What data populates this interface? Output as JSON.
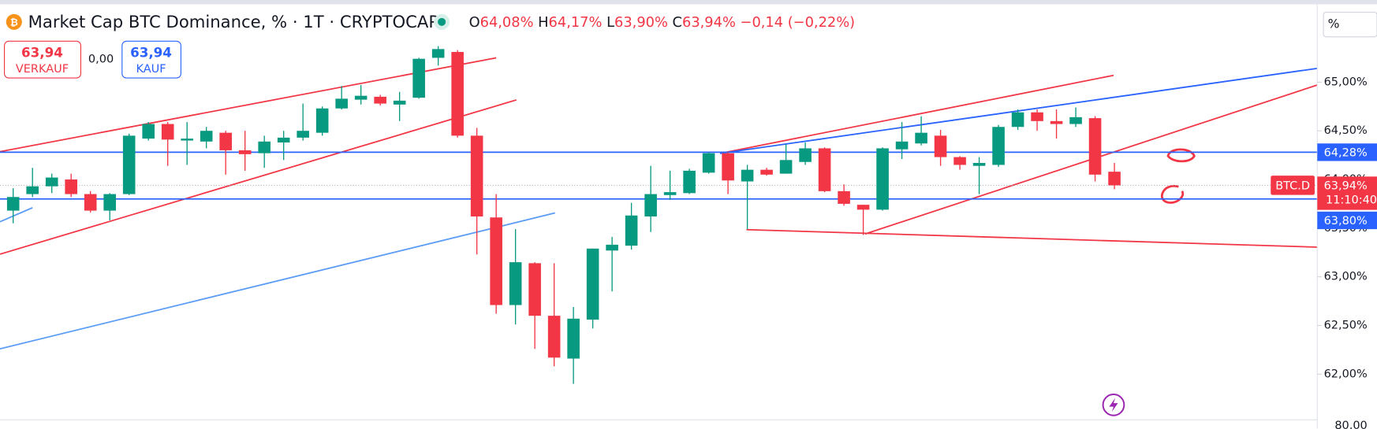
{
  "chart_data": {
    "type": "candlestick",
    "title": "Market Cap BTC Dominance, % · 1T · CRYPTOCAP",
    "ohlc_header": [
      {
        "label": "O",
        "value": "64,08%"
      },
      {
        "label": "H",
        "value": "64,17%"
      },
      {
        "label": "L",
        "value": "63,90%"
      },
      {
        "label": "C",
        "value": "63,94%"
      }
    ],
    "change": "−0,14 (−0,22%)",
    "open": [
      63.68,
      63.85,
      63.93,
      64.0,
      63.85,
      63.68,
      63.85,
      64.42,
      64.57,
      64.4,
      64.39,
      64.48,
      64.3,
      64.27,
      64.38,
      64.43,
      64.48,
      64.73,
      64.82,
      64.85,
      64.77,
      64.84,
      65.25,
      65.31,
      64.45,
      63.61,
      62.71,
      63.14,
      62.6,
      62.16,
      62.56,
      63.27,
      63.32,
      63.62,
      63.84,
      63.86,
      64.07,
      64.27,
      63.98,
      64.1,
      64.06,
      64.18,
      64.32,
      63.88,
      63.74,
      63.69,
      64.31,
      64.37,
      64.45,
      64.23,
      64.14,
      64.15,
      64.54,
      64.69,
      64.6,
      64.57,
      64.63,
      64.08
    ],
    "high": [
      63.91,
      64.12,
      64.06,
      64.06,
      63.88,
      63.86,
      64.47,
      64.59,
      64.59,
      64.59,
      64.54,
      64.5,
      64.5,
      64.45,
      64.5,
      64.78,
      64.75,
      64.96,
      64.97,
      64.87,
      64.9,
      65.25,
      65.37,
      65.33,
      64.53,
      63.85,
      63.49,
      63.15,
      63.14,
      62.69,
      63.29,
      63.41,
      63.76,
      64.14,
      64.09,
      64.11,
      64.28,
      64.28,
      64.15,
      64.12,
      64.36,
      64.38,
      64.33,
      63.95,
      63.74,
      64.33,
      64.59,
      64.65,
      64.51,
      64.24,
      64.23,
      64.56,
      64.72,
      64.72,
      64.72,
      64.74,
      64.65,
      64.17
    ],
    "low": [
      63.55,
      63.82,
      63.86,
      63.82,
      63.66,
      63.58,
      63.84,
      64.4,
      64.14,
      64.15,
      64.32,
      64.05,
      64.09,
      64.12,
      64.2,
      64.4,
      64.45,
      64.72,
      64.77,
      64.76,
      64.6,
      64.83,
      65.17,
      64.43,
      63.23,
      62.62,
      62.51,
      62.26,
      62.08,
      61.9,
      62.47,
      62.85,
      63.28,
      63.46,
      63.79,
      63.85,
      64.06,
      63.85,
      63.49,
      64.04,
      64.06,
      64.15,
      63.87,
      63.73,
      63.43,
      63.68,
      64.21,
      64.35,
      64.14,
      64.1,
      63.85,
      64.13,
      64.51,
      64.5,
      64.42,
      64.54,
      63.98,
      63.9
    ],
    "close": [
      63.82,
      63.93,
      64.02,
      63.85,
      63.68,
      63.85,
      64.45,
      64.57,
      64.41,
      64.42,
      64.5,
      64.3,
      64.26,
      64.39,
      64.43,
      64.5,
      64.73,
      64.83,
      64.86,
      64.78,
      64.81,
      65.24,
      65.34,
      64.45,
      63.62,
      62.71,
      63.15,
      62.6,
      62.17,
      62.57,
      63.29,
      63.33,
      63.63,
      63.85,
      63.87,
      64.09,
      64.27,
      63.99,
      64.1,
      64.05,
      64.2,
      64.32,
      63.88,
      63.75,
      63.69,
      64.32,
      64.39,
      64.48,
      64.23,
      64.15,
      64.17,
      64.54,
      64.69,
      64.6,
      64.57,
      64.64,
      64.05,
      63.94
    ],
    "up_color": "#089981",
    "down_color": "#f23645",
    "ylim": [
      61.54,
      65.79
    ],
    "yticks": [
      {
        "value": 62,
        "label": "62,00%"
      },
      {
        "value": 62.5,
        "label": "62,50%"
      },
      {
        "value": 63,
        "label": "63,00%"
      },
      {
        "value": 63.5,
        "label": "63,50%"
      },
      {
        "value": 64,
        "label": "64,00%"
      },
      {
        "value": 64.5,
        "label": "64,50%"
      },
      {
        "value": 65,
        "label": "65,00%"
      }
    ],
    "hlines": [
      {
        "value": 64.28,
        "label": "64,28%",
        "color": "#2962ff"
      },
      {
        "value": 63.8,
        "label": "63,80%",
        "color": "#2962ff"
      }
    ],
    "last_price": {
      "value": 63.94,
      "label": "63,94%",
      "symbol": "BTC.D",
      "countdown": "11:10:40",
      "color": "#f23645"
    },
    "lower_pane_label": "80,00"
  },
  "toolbar": {
    "sell_price": "63,94",
    "sell_label": "VERKAUF",
    "spread": "0,00",
    "buy_price": "63,94",
    "buy_label": "KAUF",
    "scale_button": "%"
  }
}
